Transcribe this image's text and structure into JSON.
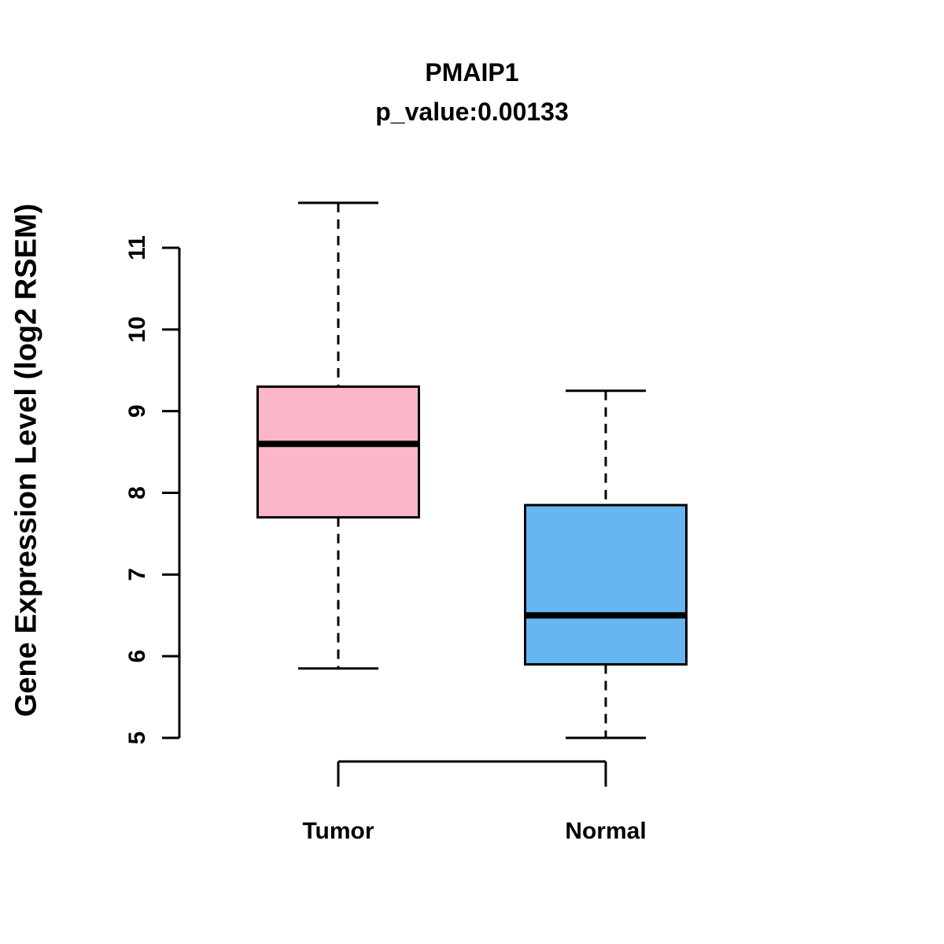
{
  "chart_data": {
    "type": "boxplot",
    "title": "PMAIP1",
    "subtitle": "p_value:0.00133",
    "ylabel": "Gene Expression Level (log2 RSEM)",
    "categories": [
      "Tumor",
      "Normal"
    ],
    "ylim": [
      5,
      11
    ],
    "yticks": [
      5,
      6,
      7,
      8,
      9,
      10,
      11
    ],
    "grid": false,
    "legend": "none",
    "series": [
      {
        "name": "Tumor",
        "color": "#FBB6C7",
        "min": 5.85,
        "q1": 7.7,
        "median": 8.6,
        "q3": 9.3,
        "max": 11.55
      },
      {
        "name": "Normal",
        "color": "#66B6F2",
        "min": 5.0,
        "q1": 5.9,
        "median": 6.5,
        "q3": 7.85,
        "max": 9.25
      }
    ]
  }
}
